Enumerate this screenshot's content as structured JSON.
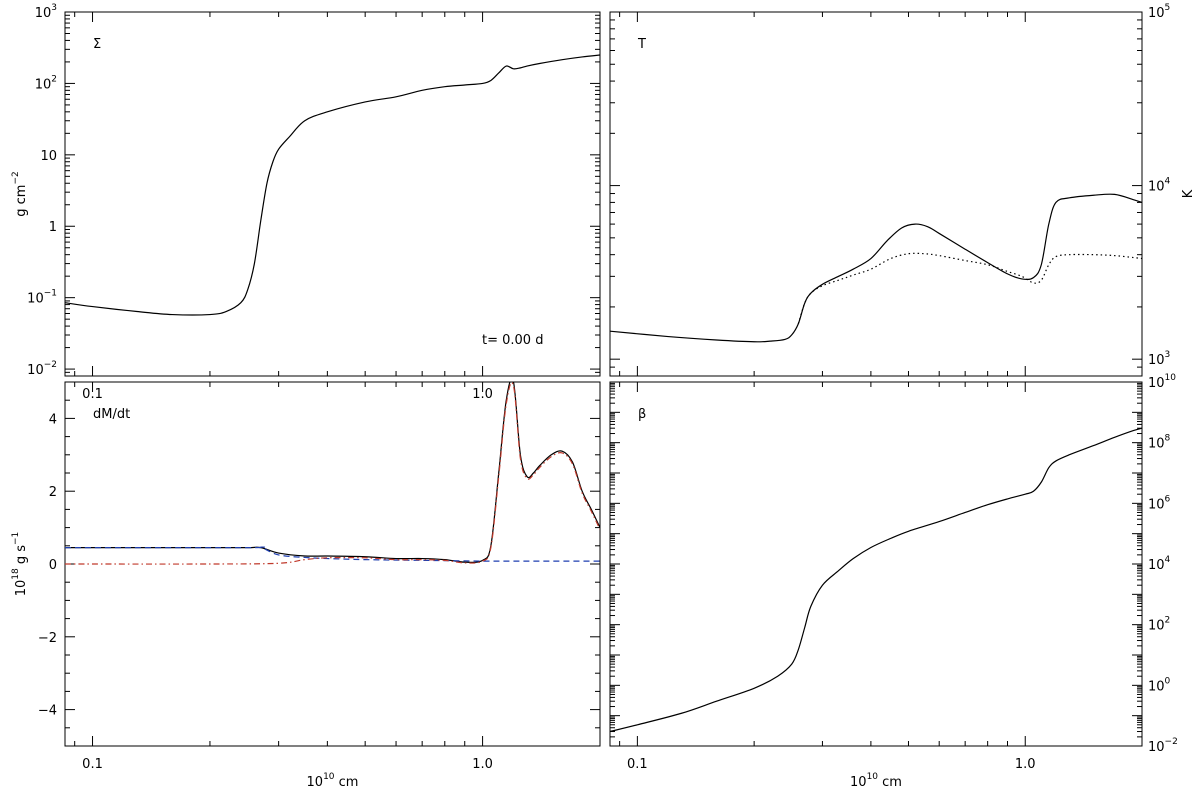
{
  "chart_data": [
    {
      "type": "line",
      "panel": "top-left",
      "panel_label": "Σ",
      "annotation": "t= 0.00 d",
      "xscale": "log",
      "yscale": "log",
      "xlim": [
        0.085,
        2.0
      ],
      "ylim": [
        0.008,
        1000
      ],
      "xticks": [
        {
          "value": 0.1,
          "label": "0.1"
        },
        {
          "value": 1.0,
          "label": "1.0"
        }
      ],
      "yticks": [
        {
          "value": 0.01,
          "base": "10",
          "exp": "−2"
        },
        {
          "value": 0.1,
          "base": "10",
          "exp": "−1"
        },
        {
          "value": 1,
          "base": "1",
          "exp": ""
        },
        {
          "value": 10,
          "base": "10",
          "exp": ""
        },
        {
          "value": 100,
          "base": "10",
          "exp": "2"
        },
        {
          "value": 1000,
          "base": "10",
          "exp": "3"
        }
      ],
      "y_axis_side": "left",
      "ylabel": {
        "main": "g cm",
        "sup": "−2"
      },
      "xlabel": {
        "pre": "",
        "sup": "",
        "post": ""
      },
      "series": [
        {
          "style": "solid",
          "color": "#000000",
          "x": [
            0.085,
            0.1,
            0.13,
            0.16,
            0.2,
            0.22,
            0.24,
            0.25,
            0.26,
            0.27,
            0.28,
            0.29,
            0.3,
            0.32,
            0.35,
            0.4,
            0.5,
            0.6,
            0.7,
            0.8,
            0.9,
            1.0,
            1.05,
            1.1,
            1.15,
            1.2,
            1.25,
            1.3,
            1.4,
            1.6,
            1.8,
            2.0
          ],
          "y": [
            0.085,
            0.075,
            0.064,
            0.058,
            0.058,
            0.064,
            0.085,
            0.13,
            0.3,
            1.2,
            4,
            8,
            12,
            18,
            30,
            40,
            55,
            65,
            80,
            90,
            95,
            100,
            110,
            140,
            175,
            160,
            165,
            175,
            190,
            215,
            235,
            250
          ]
        }
      ]
    },
    {
      "type": "line",
      "panel": "top-right",
      "panel_label": "T",
      "xscale": "log",
      "yscale": "log",
      "xlim": [
        0.085,
        2.0
      ],
      "ylim": [
        800,
        100000
      ],
      "xticks": [
        {
          "value": 0.1,
          "label": ""
        },
        {
          "value": 1.0,
          "label": ""
        }
      ],
      "yticks": [
        {
          "value": 1000,
          "base": "10",
          "exp": "3"
        },
        {
          "value": 10000,
          "base": "10",
          "exp": "4"
        },
        {
          "value": 100000,
          "base": "10",
          "exp": "5"
        }
      ],
      "y_axis_side": "right",
      "ylabel": {
        "main": "K",
        "sup": ""
      },
      "xlabel": {
        "pre": "",
        "sup": "",
        "post": ""
      },
      "series": [
        {
          "style": "solid",
          "color": "#000000",
          "x": [
            0.085,
            0.12,
            0.16,
            0.2,
            0.22,
            0.24,
            0.25,
            0.26,
            0.27,
            0.28,
            0.3,
            0.33,
            0.36,
            0.4,
            0.44,
            0.48,
            0.52,
            0.56,
            0.6,
            0.7,
            0.8,
            0.9,
            0.98,
            1.05,
            1.1,
            1.15,
            1.2,
            1.3,
            1.5,
            1.7,
            1.9,
            2.0
          ],
          "y": [
            1450,
            1350,
            1290,
            1260,
            1270,
            1300,
            1380,
            1600,
            2100,
            2400,
            2700,
            3000,
            3300,
            3800,
            4800,
            5700,
            6000,
            5800,
            5300,
            4300,
            3600,
            3100,
            2900,
            2950,
            3500,
            6000,
            8000,
            8500,
            8800,
            8900,
            8300,
            8000
          ]
        },
        {
          "style": "dotted",
          "color": "#000000",
          "x": [
            0.26,
            0.27,
            0.28,
            0.3,
            0.33,
            0.36,
            0.4,
            0.45,
            0.5,
            0.55,
            0.6,
            0.7,
            0.8,
            0.9,
            0.98,
            1.05,
            1.1,
            1.15,
            1.2,
            1.3,
            1.5,
            1.7,
            1.9,
            2.0
          ],
          "y": [
            1600,
            2100,
            2400,
            2650,
            2850,
            3050,
            3300,
            3800,
            4050,
            4050,
            3950,
            3700,
            3500,
            3200,
            3000,
            2750,
            2850,
            3500,
            3900,
            4000,
            4000,
            3950,
            3850,
            3800
          ]
        }
      ]
    },
    {
      "type": "line",
      "panel": "bottom-left",
      "panel_label": "dM/dt",
      "xscale": "log",
      "yscale": "linear",
      "xlim": [
        0.085,
        2.0
      ],
      "ylim": [
        -5,
        5
      ],
      "xticks": [
        {
          "value": 0.1,
          "label": "0.1"
        },
        {
          "value": 1.0,
          "label": "1.0"
        }
      ],
      "yticks": [
        {
          "value": -4,
          "base": "−4",
          "exp": ""
        },
        {
          "value": -2,
          "base": "−2",
          "exp": ""
        },
        {
          "value": 0,
          "base": "0",
          "exp": ""
        },
        {
          "value": 2,
          "base": "2",
          "exp": ""
        },
        {
          "value": 4,
          "base": "4",
          "exp": ""
        }
      ],
      "y_axis_side": "left",
      "ylabel": {
        "pre": "10",
        "sup": "18",
        "post": " g s",
        "sup2": "−1"
      },
      "xlabel": {
        "pre": "10",
        "sup": "10",
        "post": " cm"
      },
      "series": [
        {
          "style": "solid",
          "color": "#000000",
          "x": [
            0.085,
            0.15,
            0.2,
            0.25,
            0.27,
            0.3,
            0.35,
            0.4,
            0.5,
            0.6,
            0.7,
            0.8,
            0.9,
            1.0,
            1.05,
            1.1,
            1.15,
            1.2,
            1.25,
            1.3,
            1.35,
            1.4,
            1.5,
            1.6,
            1.7,
            1.8,
            1.9,
            2.0
          ],
          "y": [
            0.45,
            0.45,
            0.45,
            0.45,
            0.45,
            0.3,
            0.22,
            0.22,
            0.2,
            0.15,
            0.15,
            0.12,
            0.05,
            0.1,
            0.5,
            2.5,
            4.5,
            5.0,
            3.0,
            2.4,
            2.5,
            2.7,
            3.0,
            3.1,
            2.8,
            2.0,
            1.5,
            1.0
          ]
        },
        {
          "style": "dashed",
          "color": "#1f3fb0",
          "x": [
            0.085,
            0.25,
            0.27,
            0.3,
            0.35,
            0.4,
            0.5,
            0.7,
            1.0,
            1.2,
            1.5,
            2.0
          ],
          "y": [
            0.45,
            0.45,
            0.45,
            0.25,
            0.18,
            0.15,
            0.12,
            0.1,
            0.08,
            0.08,
            0.08,
            0.08
          ]
        },
        {
          "style": "dashdot",
          "color": "#c0392b",
          "x": [
            0.085,
            0.2,
            0.3,
            0.35,
            0.4,
            0.5,
            0.6,
            0.7,
            0.8,
            0.9,
            1.0,
            1.05,
            1.1,
            1.15,
            1.2,
            1.25,
            1.3,
            1.35,
            1.4,
            1.5,
            1.6,
            1.7,
            1.8,
            1.9,
            2.0
          ],
          "y": [
            0.0,
            0.0,
            0.02,
            0.12,
            0.17,
            0.17,
            0.12,
            0.12,
            0.1,
            0.03,
            0.08,
            0.45,
            2.4,
            4.4,
            4.9,
            2.9,
            2.35,
            2.45,
            2.65,
            2.95,
            3.05,
            2.75,
            1.95,
            1.45,
            0.95
          ]
        }
      ]
    },
    {
      "type": "line",
      "panel": "bottom-right",
      "panel_label": "β",
      "xscale": "log",
      "yscale": "log",
      "xlim": [
        0.085,
        2.0
      ],
      "ylim": [
        0.01,
        10000000000
      ],
      "xticks": [
        {
          "value": 0.1,
          "label": "0.1"
        },
        {
          "value": 1.0,
          "label": "1.0"
        }
      ],
      "yticks": [
        {
          "value": 0.01,
          "base": "10",
          "exp": "−2"
        },
        {
          "value": 1,
          "base": "10",
          "exp": "0"
        },
        {
          "value": 100,
          "base": "10",
          "exp": "2"
        },
        {
          "value": 10000,
          "base": "10",
          "exp": "4"
        },
        {
          "value": 1000000,
          "base": "10",
          "exp": "6"
        },
        {
          "value": 100000000,
          "base": "10",
          "exp": "8"
        },
        {
          "value": 10000000000,
          "base": "10",
          "exp": "10"
        }
      ],
      "y_axis_side": "right",
      "ylabel": {
        "main": "",
        "sup": ""
      },
      "xlabel": {
        "pre": "10",
        "sup": "10",
        "post": " cm"
      },
      "series": [
        {
          "style": "solid",
          "color": "#000000",
          "x": [
            0.085,
            0.1,
            0.13,
            0.16,
            0.2,
            0.23,
            0.25,
            0.26,
            0.27,
            0.28,
            0.3,
            0.33,
            0.36,
            0.4,
            0.45,
            0.5,
            0.6,
            0.7,
            0.8,
            0.9,
            1.0,
            1.05,
            1.1,
            1.15,
            1.2,
            1.3,
            1.5,
            1.7,
            1.9,
            2.0
          ],
          "y": [
            0.03,
            0.05,
            0.12,
            0.3,
            0.8,
            2.0,
            5,
            15,
            80,
            400,
            2000,
            6000,
            15000,
            35000,
            70000,
            120000,
            250000,
            500000,
            900000,
            1400000,
            2000000,
            2500000,
            5000000,
            15000000,
            25000000,
            40000000,
            80000000,
            150000000,
            250000000,
            300000000
          ]
        }
      ]
    }
  ]
}
